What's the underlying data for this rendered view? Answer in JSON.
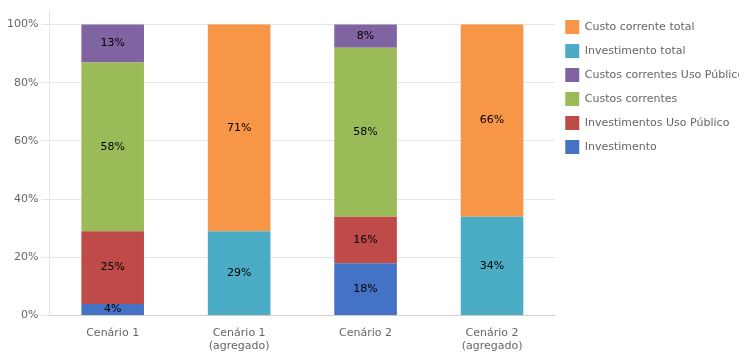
{
  "chart_data": {
    "type": "bar",
    "stacked": true,
    "categories": [
      "Cenário 1",
      "Cenário 1\n(agregado)",
      "Cenário 2",
      "Cenário 2\n(agregado)"
    ],
    "series": [
      {
        "name": "Investimento",
        "color": "#4472C4",
        "values": [
          4,
          0,
          18,
          0
        ],
        "value_labels": [
          "4%",
          null,
          "18%",
          null
        ]
      },
      {
        "name": "Investimentos Uso Público",
        "color": "#BE4B48",
        "values": [
          25,
          0,
          16,
          0
        ],
        "value_labels": [
          "25%",
          null,
          "16%",
          null
        ]
      },
      {
        "name": "Custos correntes",
        "color": "#9BBB59",
        "values": [
          58,
          0,
          58,
          0
        ],
        "value_labels": [
          "58%",
          null,
          "58%",
          null
        ]
      },
      {
        "name": "Custos correntes Uso Público",
        "color": "#8064A2",
        "values": [
          13,
          0,
          8,
          0
        ],
        "value_labels": [
          "13%",
          null,
          "8%",
          null
        ]
      },
      {
        "name": "Investimento total",
        "color": "#4BACC6",
        "values": [
          0,
          29,
          0,
          34
        ],
        "value_labels": [
          null,
          "29%",
          null,
          "34%"
        ]
      },
      {
        "name": "Custo corrente total",
        "color": "#F79646",
        "values": [
          0,
          71,
          0,
          66
        ],
        "value_labels": [
          null,
          "71%",
          null,
          "66%"
        ]
      }
    ],
    "ylim": [
      0,
      105
    ],
    "yticks": [
      {
        "value": 0,
        "label": "0%"
      },
      {
        "value": 20,
        "label": "20%"
      },
      {
        "value": 40,
        "label": "40%"
      },
      {
        "value": 60,
        "label": "60%"
      },
      {
        "value": 80,
        "label": "80%"
      },
      {
        "value": 100,
        "label": "100%"
      }
    ],
    "grid": true,
    "legend": "right",
    "data_labels": true
  }
}
